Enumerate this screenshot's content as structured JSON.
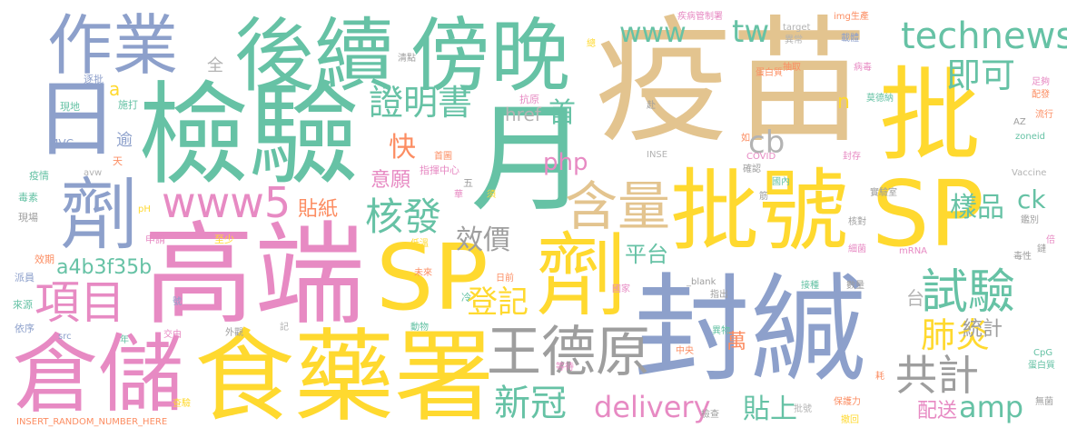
{
  "palette": {
    "tan": "#e3c48f",
    "green": "#66c2a5",
    "blue": "#8da0cb",
    "pink": "#e78ac3",
    "yellow": "#ffd92f",
    "olive": "#a6d854",
    "orange": "#fc8d62",
    "gray": "#b3b3b3",
    "darkgray": "#9e9e9e"
  },
  "words": [
    {
      "key": "w_yimiao",
      "text": "疫苗"
    },
    {
      "key": "w_jianyan",
      "text": "檢驗"
    },
    {
      "key": "w_gaoduan",
      "text": "高端"
    },
    {
      "key": "w_fengjian",
      "text": "封緘"
    },
    {
      "key": "w_shiyaoshu",
      "text": "食藥署"
    },
    {
      "key": "w_houxu",
      "text": "後續"
    },
    {
      "key": "w_bangwan",
      "text": "傍晚"
    },
    {
      "key": "w_zuoye",
      "text": "作業"
    },
    {
      "key": "w_sp1",
      "text": "SP"
    },
    {
      "key": "w_sp2",
      "text": "SP"
    },
    {
      "key": "w_pi",
      "text": "批"
    },
    {
      "key": "w_pihao",
      "text": "批號"
    },
    {
      "key": "w_yue",
      "text": "月"
    },
    {
      "key": "w_ri",
      "text": "日"
    },
    {
      "key": "w_ji1",
      "text": "劑"
    },
    {
      "key": "w_ji2",
      "text": "劑"
    },
    {
      "key": "w_cangchu",
      "text": "倉儲"
    },
    {
      "key": "w_xiangmu",
      "text": "項目"
    },
    {
      "key": "w_wangdeyuan",
      "text": "王德原"
    },
    {
      "key": "w_technews",
      "text": "technews"
    },
    {
      "key": "w_www",
      "text": "www"
    },
    {
      "key": "w_tw",
      "text": "tw"
    },
    {
      "key": "w_jike",
      "text": "即可"
    },
    {
      "key": "w_zhengmingshu",
      "text": "證明書"
    },
    {
      "key": "w_hanliang",
      "text": "含量"
    },
    {
      "key": "w_www5",
      "text": "www5"
    },
    {
      "key": "w_hefa",
      "text": "核發"
    },
    {
      "key": "w_shiyan",
      "text": "試驗"
    },
    {
      "key": "w_feiyan",
      "text": "肺炎"
    },
    {
      "key": "w_gongji",
      "text": "共計"
    },
    {
      "key": "w_xinguan",
      "text": "新冠"
    },
    {
      "key": "w_dengji",
      "text": "登記"
    },
    {
      "key": "w_delivery",
      "text": "delivery"
    },
    {
      "key": "w_amp",
      "text": "amp"
    },
    {
      "key": "w_a4b3f35b",
      "text": "a4b3f35b"
    },
    {
      "key": "w_yangpin",
      "text": "樣品"
    },
    {
      "key": "w_cb",
      "text": "cb"
    },
    {
      "key": "w_php",
      "text": "php"
    },
    {
      "key": "w_kuai",
      "text": "快"
    },
    {
      "key": "w_shou",
      "text": "首"
    },
    {
      "key": "w_href",
      "text": "href"
    },
    {
      "key": "w_yiyuan",
      "text": "意願"
    },
    {
      "key": "w_tiezhi",
      "text": "貼紙"
    },
    {
      "key": "w_xiaojia",
      "text": "效價"
    },
    {
      "key": "w_pingtai",
      "text": "平台"
    },
    {
      "key": "w_ck",
      "text": "ck"
    },
    {
      "key": "w_tongji",
      "text": "統計"
    },
    {
      "key": "w_tieshang",
      "text": "貼上"
    },
    {
      "key": "w_peisong",
      "text": "配送"
    },
    {
      "key": "w_wan",
      "text": "萬"
    },
    {
      "key": "w_tai",
      "text": "台"
    },
    {
      "key": "w_n",
      "text": "n"
    },
    {
      "key": "w_a",
      "text": "a"
    },
    {
      "key": "w_quan",
      "text": "全"
    },
    {
      "key": "w_yu",
      "text": "逾"
    },
    {
      "key": "w_shida",
      "text": "施打"
    },
    {
      "key": "w_xiandi",
      "text": "現地"
    },
    {
      "key": "w_zhupi",
      "text": "逐批"
    },
    {
      "key": "w_mvc",
      "text": "MVC"
    },
    {
      "key": "w_yiqing",
      "text": "疫情"
    },
    {
      "key": "w_avw",
      "text": "avw"
    },
    {
      "key": "w_tian",
      "text": "天"
    },
    {
      "key": "w_dusu",
      "text": "毒素"
    },
    {
      "key": "w_xianchang",
      "text": "現場"
    },
    {
      "key": "w_ph",
      "text": "pH"
    },
    {
      "key": "w_shenqing",
      "text": "申請"
    },
    {
      "key": "w_zhishao",
      "text": "至少"
    },
    {
      "key": "w_xiaoqi",
      "text": "效期"
    },
    {
      "key": "w_paiyuan",
      "text": "派員"
    },
    {
      "key": "w_laiyuan",
      "text": "來源"
    },
    {
      "key": "w_yixu",
      "text": "依序"
    },
    {
      "key": "w_src",
      "text": "src"
    },
    {
      "key": "w_jiaoyou",
      "text": "交由"
    },
    {
      "key": "w_waiguan",
      "text": "外觀"
    },
    {
      "key": "w_hao",
      "text": "號"
    },
    {
      "key": "w_nian",
      "text": "年"
    },
    {
      "key": "w_chayan",
      "text": "查驗"
    },
    {
      "key": "w_insert",
      "text": "INSERT_RANDOM_NUMBER_HERE"
    },
    {
      "key": "w_dengdai",
      "text": "等待"
    },
    {
      "key": "w_dongwu",
      "text": "動物"
    },
    {
      "key": "w_weilai",
      "text": "未來"
    },
    {
      "key": "w_leng",
      "text": "冷"
    },
    {
      "key": "w_diwen",
      "text": "低溫"
    },
    {
      "key": "w_riqian",
      "text": "日前"
    },
    {
      "key": "w_shoutu",
      "text": "首圖"
    },
    {
      "key": "w_zhihuizhongxin",
      "text": "指揮中心"
    },
    {
      "key": "w_wu",
      "text": "五"
    },
    {
      "key": "w_hua",
      "text": "華"
    },
    {
      "key": "w_xu",
      "text": "須"
    },
    {
      "key": "w_kangyuan",
      "text": "抗原"
    },
    {
      "key": "w_qingdian",
      "text": "清點"
    },
    {
      "key": "w_fu",
      "text": "赴"
    },
    {
      "key": "w_jibingguanzhishu",
      "text": "疾病管制署"
    },
    {
      "key": "w_zong",
      "text": "總"
    },
    {
      "key": "w_target",
      "text": "target"
    },
    {
      "key": "w_yichang",
      "text": "異常"
    },
    {
      "key": "w_danbaizhi1",
      "text": "蛋白質"
    },
    {
      "key": "w_chouqu",
      "text": "抽取"
    },
    {
      "key": "w_img",
      "text": "img生產"
    },
    {
      "key": "w_zaiti",
      "text": "載體"
    },
    {
      "key": "w_bingdu",
      "text": "病毒"
    },
    {
      "key": "w_moderna",
      "text": "莫德納"
    },
    {
      "key": "w_zugou",
      "text": "足夠"
    },
    {
      "key": "w_peiyi",
      "text": "配發"
    },
    {
      "key": "w_liuxing",
      "text": "流行"
    },
    {
      "key": "w_az",
      "text": "AZ"
    },
    {
      "key": "w_zoneid",
      "text": "zoneid"
    },
    {
      "key": "w_inse",
      "text": "INSE"
    },
    {
      "key": "w_covid",
      "text": "COVID"
    },
    {
      "key": "w_queren",
      "text": "確認"
    },
    {
      "key": "w_guonei",
      "text": "國內"
    },
    {
      "key": "w_fengcun",
      "text": "封存"
    },
    {
      "key": "w_shiyanshi",
      "text": "實驗室"
    },
    {
      "key": "w_vaccine",
      "text": "Vaccine"
    },
    {
      "key": "w_hedui",
      "text": "核對"
    },
    {
      "key": "w_jianbie",
      "text": "鑑別"
    },
    {
      "key": "w_xijun",
      "text": "細菌"
    },
    {
      "key": "w_dux",
      "text": "毒性"
    },
    {
      "key": "w_mrna",
      "text": "mRNA"
    },
    {
      "key": "w_lian",
      "text": "鏈"
    },
    {
      "key": "w_bei",
      "text": "倍"
    },
    {
      "key": "w_shuliang",
      "text": "數量"
    },
    {
      "key": "w_jiezhong",
      "text": "接種"
    },
    {
      "key": "w_zhichu",
      "text": "指出"
    },
    {
      "key": "w_blank",
      "text": "_blank"
    },
    {
      "key": "w_guojia",
      "text": "國家"
    },
    {
      "key": "w_yiwu",
      "text": "異物"
    },
    {
      "key": "w_zhongyang",
      "text": "中央"
    },
    {
      "key": "w_cpg",
      "text": "CpG"
    },
    {
      "key": "w_danbaizhi2",
      "text": "蛋白質"
    },
    {
      "key": "w_hao2",
      "text": "耗"
    },
    {
      "key": "w_baohuli",
      "text": "保護力"
    },
    {
      "key": "w_huibo",
      "text": "撤回"
    },
    {
      "key": "w_wushu",
      "text": "無菌"
    },
    {
      "key": "w_pihao2",
      "text": "批號"
    },
    {
      "key": "w_jiancha",
      "text": "檢查"
    },
    {
      "key": "w_jin",
      "text": "筋"
    },
    {
      "key": "w_ru",
      "text": "如"
    },
    {
      "key": "w_ji3",
      "text": "記"
    }
  ]
}
